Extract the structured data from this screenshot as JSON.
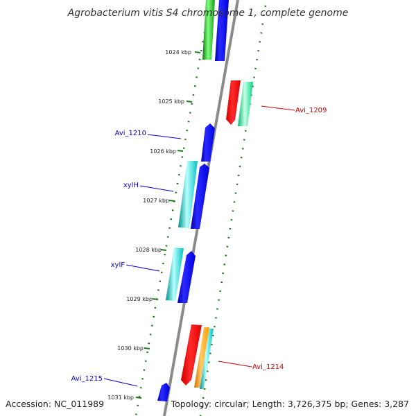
{
  "title": "Agrobacterium vitis S4 chromosome 1, complete genome",
  "footer": {
    "accession": "Accession: NC_011989",
    "summary": "Topology: circular; Length: 3,726,375 bp; Genes: 3,287"
  },
  "ticks": [
    {
      "label": "1024 kbp"
    },
    {
      "label": "1025 kbp"
    },
    {
      "label": "1026 kbp"
    },
    {
      "label": "1027 kbp"
    },
    {
      "label": "1028 kbp"
    },
    {
      "label": "1029 kbp"
    },
    {
      "label": "1030 kbp"
    },
    {
      "label": "1031 kbp"
    }
  ],
  "gene_labels": [
    {
      "text": "Avi_1209",
      "strand": "reverse"
    },
    {
      "text": "Avi_1210",
      "strand": "forward"
    },
    {
      "text": "xylH",
      "strand": "forward"
    },
    {
      "text": "xylF",
      "strand": "forward"
    },
    {
      "text": "Avi_1214",
      "strand": "reverse"
    },
    {
      "text": "Avi_1215",
      "strand": "forward"
    }
  ],
  "colors": {
    "forward_label": "#0000cc",
    "reverse_label": "#cc0000",
    "backbone": "#888888",
    "gc_ticks": "#1a7a1a",
    "cds_blue": "#0000ff",
    "cds_cyan": "#00c8c8",
    "cds_green": "#1faa1f",
    "cds_red": "#ff0000",
    "cds_spring_green": "#00e890",
    "cds_orange": "#ff9900"
  }
}
